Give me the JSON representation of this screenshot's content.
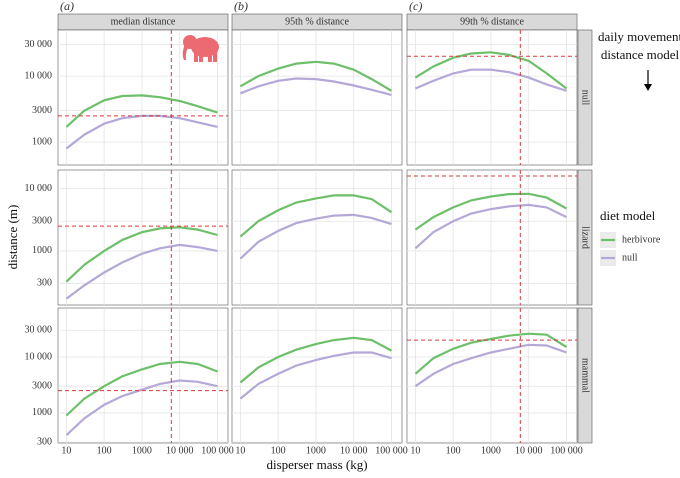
{
  "chart_data": {
    "type": "line",
    "x_label": "disperser mass (kg)",
    "y_label": "distance (m)",
    "legend_title": "diet model",
    "legend_position": "right",
    "annotation": [
      "daily movement",
      "distance model"
    ],
    "log_x": true,
    "log_y": true,
    "grid": true,
    "x": [
      10,
      30,
      100,
      300,
      1000,
      3000,
      10000,
      30000,
      100000
    ],
    "xlim": [
      6,
      190000
    ],
    "xticks": [
      10,
      100,
      1000,
      {
        "value": 10000,
        "label": "10 000"
      },
      {
        "value": 100000,
        "label": "100 000"
      }
    ],
    "series": [
      {
        "name": "herbivore",
        "color": "#6dbf6a"
      },
      {
        "name": "null",
        "color": "#b5a8d8"
      }
    ],
    "columns": [
      {
        "label": "(a)",
        "strip": "median distance"
      },
      {
        "label": "(b)",
        "strip": "95th % distance"
      },
      {
        "label": "(c)",
        "strip": "99th % distance"
      }
    ],
    "rows": [
      {
        "strip": "null",
        "ylim": [
          450,
          50000
        ],
        "yticks": [
          1000,
          3000,
          {
            "value": 10000,
            "label": "10 000"
          },
          {
            "value": 30000,
            "label": "30 000"
          }
        ]
      },
      {
        "strip": "lizard",
        "ylim": [
          135,
          20000
        ],
        "yticks": [
          300,
          1000,
          3000,
          {
            "value": 10000,
            "label": "10 000"
          }
        ]
      },
      {
        "strip": "mammal",
        "ylim": [
          290,
          75000
        ],
        "yticks": [
          300,
          1000,
          3000,
          {
            "value": 10000,
            "label": "10 000"
          },
          {
            "value": 30000,
            "label": "30 000"
          }
        ]
      }
    ],
    "panels": [
      {
        "row": 0,
        "column": 0,
        "hline": 2500,
        "vline": 6000,
        "values": [
          [
            1700,
            3000,
            4300,
            5000,
            5100,
            4800,
            4200,
            3500,
            2800
          ],
          [
            800,
            1300,
            1900,
            2300,
            2500,
            2500,
            2300,
            2000,
            1700
          ]
        ]
      },
      {
        "row": 0,
        "column": 1,
        "values": [
          [
            7000,
            10000,
            13000,
            15500,
            16500,
            15500,
            12500,
            9000,
            6000
          ],
          [
            5500,
            7000,
            8500,
            9200,
            9000,
            8300,
            7200,
            6200,
            5200
          ]
        ]
      },
      {
        "row": 0,
        "column": 2,
        "hline": 20000,
        "vline": 6000,
        "values": [
          [
            9500,
            14000,
            19000,
            22000,
            23000,
            21000,
            17000,
            11000,
            6500
          ],
          [
            6500,
            8500,
            11000,
            12500,
            12500,
            11500,
            9500,
            7500,
            6000
          ]
        ]
      },
      {
        "row": 1,
        "column": 0,
        "hline": 2500,
        "vline": 6000,
        "values": [
          [
            320,
            600,
            1000,
            1500,
            2000,
            2300,
            2400,
            2200,
            1800
          ],
          [
            170,
            280,
            450,
            650,
            900,
            1100,
            1250,
            1150,
            1000
          ]
        ]
      },
      {
        "row": 1,
        "column": 1,
        "values": [
          [
            1700,
            3000,
            4500,
            6000,
            7000,
            7800,
            7800,
            6800,
            4200
          ],
          [
            750,
            1400,
            2100,
            2800,
            3300,
            3700,
            3800,
            3400,
            2700
          ]
        ]
      },
      {
        "row": 1,
        "column": 2,
        "hline": 16000,
        "vline": 6000,
        "values": [
          [
            2200,
            3500,
            5000,
            6500,
            7500,
            8200,
            8300,
            7200,
            4800
          ],
          [
            1100,
            2000,
            3000,
            4000,
            4700,
            5200,
            5500,
            5000,
            3500
          ]
        ]
      },
      {
        "row": 2,
        "column": 0,
        "hline": 2500,
        "vline": 6000,
        "values": [
          [
            900,
            1800,
            3000,
            4500,
            6000,
            7500,
            8200,
            7500,
            5500
          ],
          [
            400,
            800,
            1400,
            2000,
            2600,
            3300,
            3800,
            3600,
            3000
          ]
        ]
      },
      {
        "row": 2,
        "column": 1,
        "values": [
          [
            3500,
            6500,
            10000,
            13500,
            17000,
            20000,
            22000,
            20000,
            13000
          ],
          [
            1800,
            3300,
            5000,
            7000,
            8800,
            10500,
            12000,
            12000,
            9500
          ]
        ]
      },
      {
        "row": 2,
        "column": 2,
        "hline": 20000,
        "vline": 6000,
        "values": [
          [
            5000,
            9500,
            14000,
            18000,
            21000,
            24000,
            26000,
            25000,
            15000
          ],
          [
            3000,
            5000,
            7500,
            9500,
            12000,
            14000,
            16500,
            16000,
            12000
          ]
        ]
      }
    ]
  }
}
